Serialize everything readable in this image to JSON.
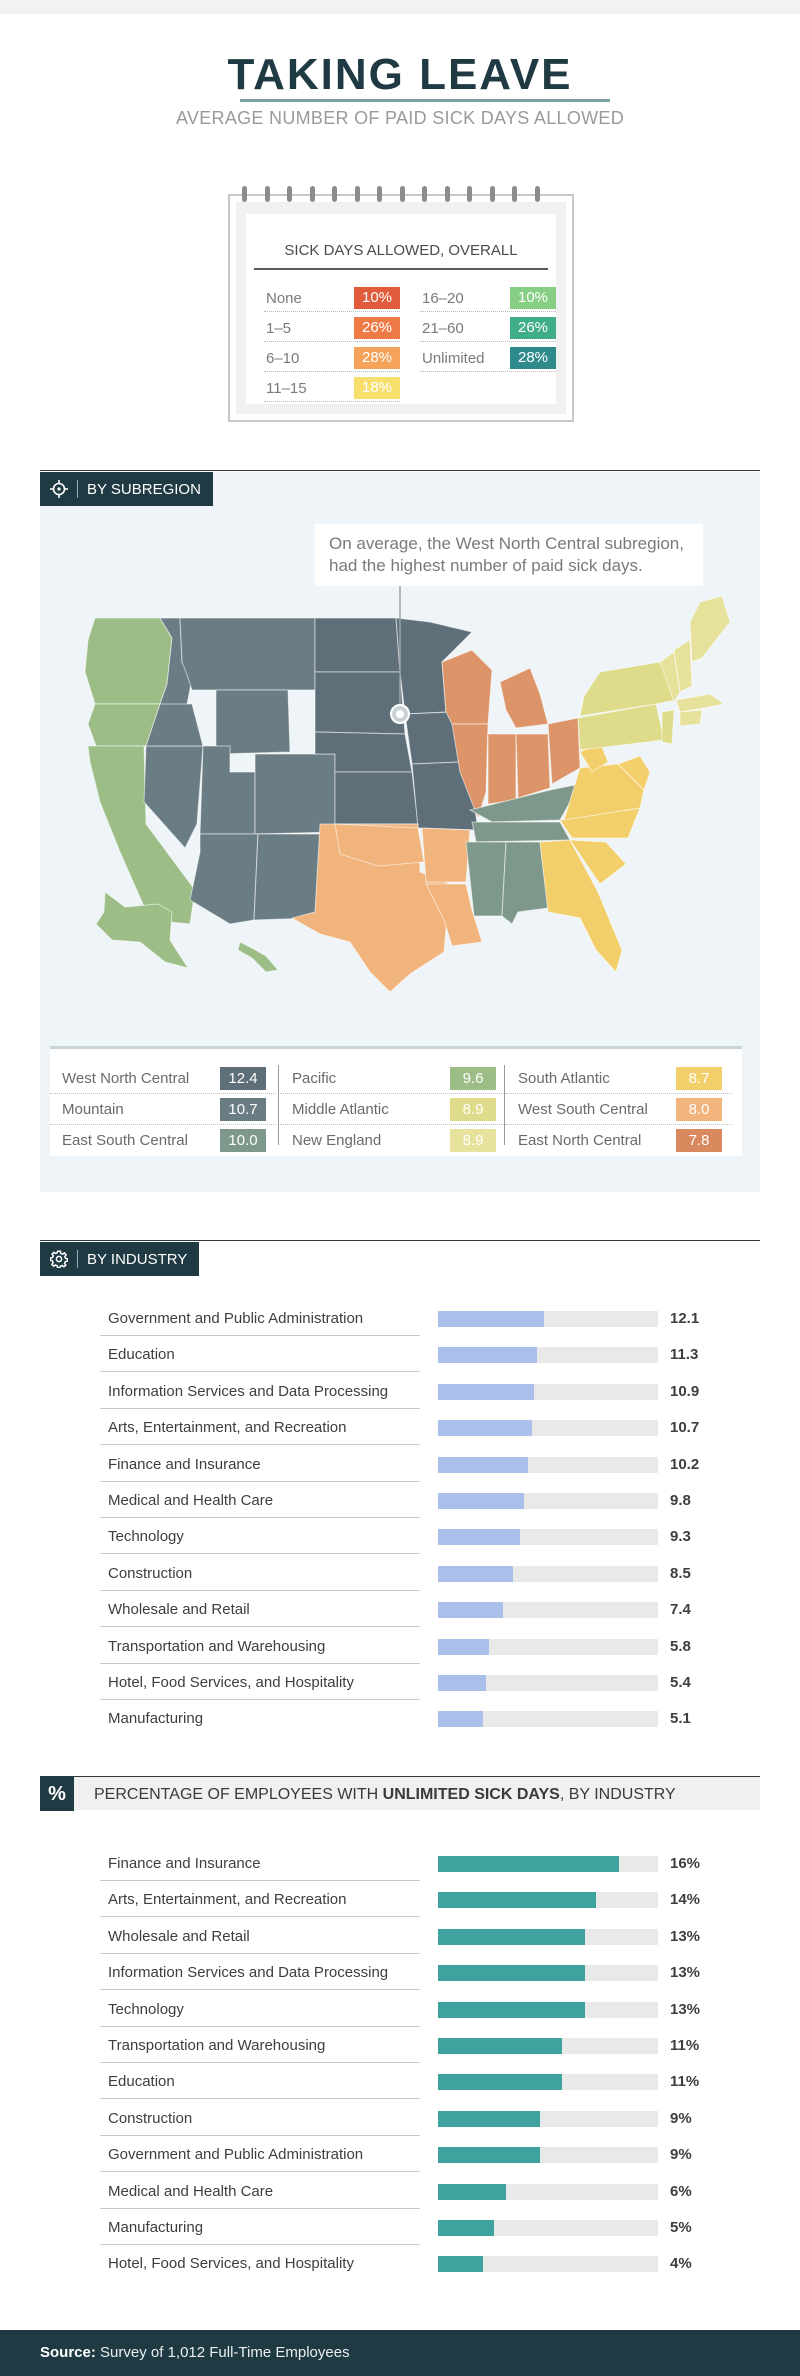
{
  "header": {
    "title": "TAKING LEAVE",
    "subtitle": "AVERAGE NUMBER OF PAID SICK DAYS ALLOWED"
  },
  "overall": {
    "title": "SICK DAYS ALLOWED, OVERALL",
    "items": [
      {
        "label": "None",
        "value": "10%",
        "color": "#e05a3c"
      },
      {
        "label": "1–5",
        "value": "26%",
        "color": "#ee7a46"
      },
      {
        "label": "6–10",
        "value": "28%",
        "color": "#f5a35a"
      },
      {
        "label": "11–15",
        "value": "18%",
        "color": "#f7df6e"
      },
      {
        "label": "16–20",
        "value": "10%",
        "color": "#86ce84"
      },
      {
        "label": "21–60",
        "value": "26%",
        "color": "#3fae88"
      },
      {
        "label": "Unlimited",
        "value": "28%",
        "color": "#2f8a8c"
      }
    ]
  },
  "subregion": {
    "tag": "BY SUBREGION",
    "callout": "On average, the West North Central subregion, had the highest number of paid sick days.",
    "icon": "crosshair-icon",
    "legend": [
      [
        {
          "label": "West North Central",
          "value": "12.4",
          "color": "#5e6f79"
        },
        {
          "label": "Mountain",
          "value": "10.7",
          "color": "#6b7d84"
        },
        {
          "label": "East South Central",
          "value": "10.0",
          "color": "#7f988c"
        }
      ],
      [
        {
          "label": "Pacific",
          "value": "9.6",
          "color": "#9cbd86"
        },
        {
          "label": "Middle Atlantic",
          "value": "8.9",
          "color": "#dedb8a"
        },
        {
          "label": "New England",
          "value": "8.9",
          "color": "#e6e19b"
        }
      ],
      [
        {
          "label": "South Atlantic",
          "value": "8.7",
          "color": "#f2cf6a"
        },
        {
          "label": "West South Central",
          "value": "8.0",
          "color": "#f0b47c"
        },
        {
          "label": "East North Central",
          "value": "7.8",
          "color": "#d88a5e"
        }
      ]
    ],
    "map_colors": {
      "pacific": "#9cbd86",
      "mountain": "#6b7d84",
      "wnc": "#5e6f79",
      "wsc": "#f0b47c",
      "enc": "#dc9468",
      "esc": "#7f988c",
      "sa": "#f2cf6a",
      "ma": "#dedb8a",
      "ne": "#e6e19b"
    }
  },
  "industry": {
    "tag": "BY INDUSTRY",
    "icon": "gear-icon"
  },
  "unlimited": {
    "prefix": "PERCENTAGE OF EMPLOYEES WITH ",
    "bold": "UNLIMITED SICK DAYS",
    "suffix": ", BY INDUSTRY",
    "icon_text": "%"
  },
  "footer": {
    "source_label": "Source:",
    "source_text": " Survey of 1,012 Full-Time Employees"
  },
  "chart_data": [
    {
      "type": "bar",
      "title": "BY INDUSTRY",
      "orientation": "horizontal",
      "color": "#aac0ea",
      "xlim": [
        0,
        25
      ],
      "categories": [
        "Government and Public Administration",
        "Education",
        "Information Services and Data Processing",
        "Arts, Entertainment, and Recreation",
        "Finance and Insurance",
        "Medical and Health Care",
        "Technology",
        "Construction",
        "Wholesale and Retail",
        "Transportation and Warehousing",
        "Hotel, Food Services, and Hospitality",
        "Manufacturing"
      ],
      "values": [
        12.1,
        11.3,
        10.9,
        10.7,
        10.2,
        9.8,
        9.3,
        8.5,
        7.4,
        5.8,
        5.4,
        5.1
      ],
      "labels": [
        "12.1",
        "11.3",
        "10.9",
        "10.7",
        "10.2",
        "9.8",
        "9.3",
        "8.5",
        "7.4",
        "5.8",
        "5.4",
        "5.1"
      ]
    },
    {
      "type": "bar",
      "title": "PERCENTAGE OF EMPLOYEES WITH UNLIMITED SICK DAYS, BY INDUSTRY",
      "orientation": "horizontal",
      "color": "#3ea39f",
      "xlim": [
        0,
        19.5
      ],
      "categories": [
        "Finance and Insurance",
        "Arts, Entertainment, and Recreation",
        "Wholesale and Retail",
        "Information Services and Data Processing",
        "Technology",
        "Transportation and Warehousing",
        "Education",
        "Construction",
        "Government and Public Administration",
        "Medical and Health Care",
        "Manufacturing",
        "Hotel, Food Services, and Hospitality"
      ],
      "values": [
        16,
        14,
        13,
        13,
        13,
        11,
        11,
        9,
        9,
        6,
        5,
        4
      ],
      "labels": [
        "16%",
        "14%",
        "13%",
        "13%",
        "13%",
        "11%",
        "11%",
        "9%",
        "9%",
        "6%",
        "5%",
        "4%"
      ]
    }
  ]
}
